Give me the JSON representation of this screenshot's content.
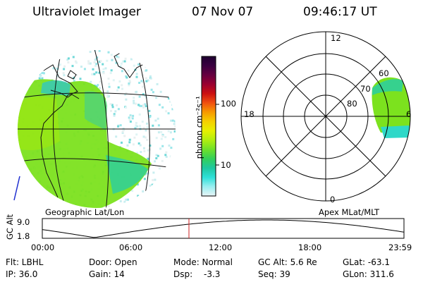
{
  "header": {
    "title": "Ultraviolet Imager",
    "date": "07 Nov 07",
    "time": "09:46:17 UT"
  },
  "geo_map": {
    "label": "Geographic Lat/Lon"
  },
  "colorbar": {
    "unit_label": "photon cm⁻²s⁻¹",
    "ticks": [
      "100",
      "10"
    ],
    "colors": [
      "#1e0030",
      "#3a0040",
      "#660040",
      "#9a0030",
      "#cc1010",
      "#f05010",
      "#f79a00",
      "#f5d000",
      "#e6f000",
      "#b0ee10",
      "#6ee02a",
      "#33d05a",
      "#20c8a0",
      "#2ee0d8",
      "#9aeef0",
      "#e8f4f6"
    ]
  },
  "polar_map": {
    "label": "Apex MLat/MLT",
    "mlt_labels": {
      "top": "12",
      "left": "18",
      "right": "6",
      "bottom": "0"
    },
    "lat_labels": [
      "60",
      "70",
      "80"
    ]
  },
  "altitude_plot": {
    "ylabel": "GC Alt",
    "ymax_label": "9.0",
    "ymin_label": "1.8",
    "x_ticks": [
      "00:00",
      "06:00",
      "12:00",
      "18:00",
      "23:59"
    ],
    "current_time_marker_color": "#cc2020"
  },
  "status": {
    "flt": "Flt: LBHL",
    "ip": "IP: 36.0",
    "door": "Door: Open",
    "gain": "Gain: 14",
    "mode": "Mode: Normal",
    "dsp_label": "Dsp:",
    "dsp_value": "-3.3",
    "gc_alt": "GC Alt: 5.6 Re",
    "seq": "Seq: 39",
    "glat": "GLat: -63.1",
    "glon": "GLon: 311.6"
  }
}
